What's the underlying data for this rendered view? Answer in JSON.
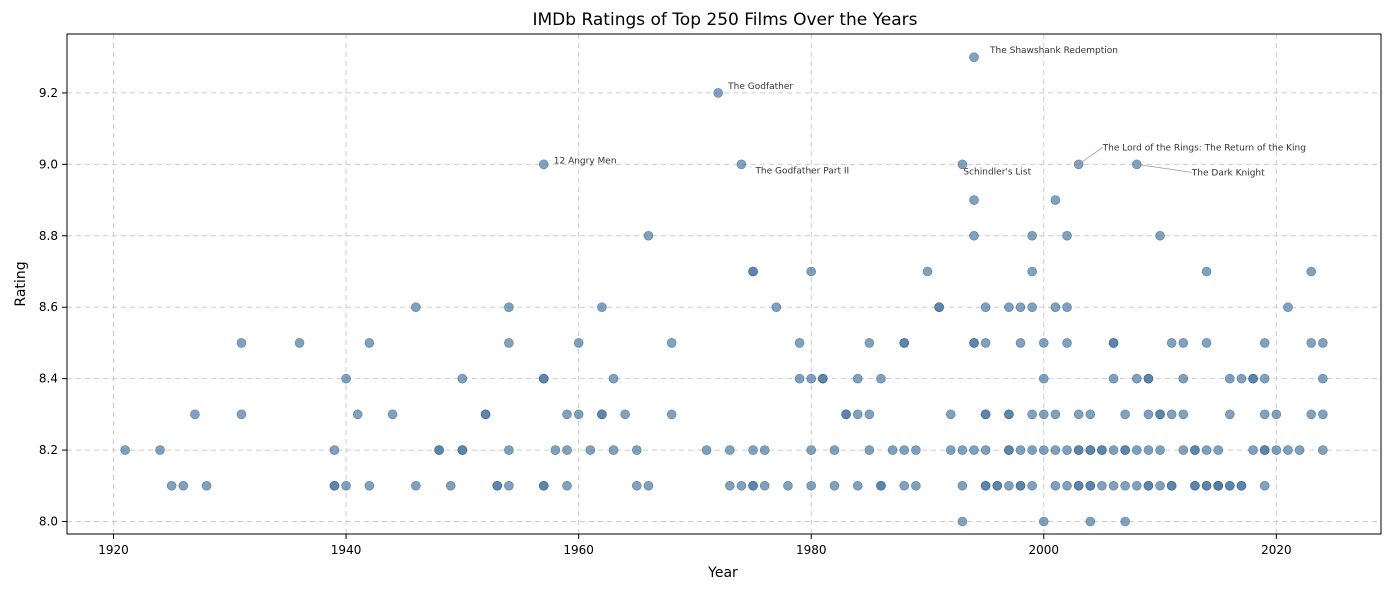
{
  "chart_data": {
    "type": "scatter",
    "title": "IMDb Ratings of Top 250 Films Over the Years",
    "xlabel": "Year",
    "ylabel": "Rating",
    "xlim": [
      1916,
      2029
    ],
    "ylim": [
      7.965,
      9.365
    ],
    "xticks": [
      1920,
      1940,
      1960,
      1980,
      2000,
      2020
    ],
    "yticks": [
      8.0,
      8.2,
      8.4,
      8.6,
      8.8,
      9.0,
      9.2
    ],
    "grid": true,
    "point_color": "#4a7ba7",
    "points": [
      [
        1921,
        8.2
      ],
      [
        1924,
        8.2
      ],
      [
        1925,
        8.1
      ],
      [
        1926,
        8.1
      ],
      [
        1927,
        8.3
      ],
      [
        1928,
        8.1
      ],
      [
        1931,
        8.5
      ],
      [
        1931,
        8.3
      ],
      [
        1936,
        8.5
      ],
      [
        1939,
        8.2
      ],
      [
        1939,
        8.1
      ],
      [
        1939,
        8.1
      ],
      [
        1940,
        8.4
      ],
      [
        1940,
        8.1
      ],
      [
        1941,
        8.3
      ],
      [
        1942,
        8.5
      ],
      [
        1942,
        8.1
      ],
      [
        1944,
        8.3
      ],
      [
        1946,
        8.6
      ],
      [
        1946,
        8.1
      ],
      [
        1948,
        8.2
      ],
      [
        1948,
        8.2
      ],
      [
        1949,
        8.1
      ],
      [
        1950,
        8.4
      ],
      [
        1950,
        8.2
      ],
      [
        1950,
        8.2
      ],
      [
        1952,
        8.3
      ],
      [
        1952,
        8.3
      ],
      [
        1953,
        8.1
      ],
      [
        1953,
        8.1
      ],
      [
        1954,
        8.6
      ],
      [
        1954,
        8.5
      ],
      [
        1954,
        8.2
      ],
      [
        1954,
        8.1
      ],
      [
        1957,
        9.0
      ],
      [
        1957,
        8.4
      ],
      [
        1957,
        8.4
      ],
      [
        1957,
        8.1
      ],
      [
        1957,
        8.1
      ],
      [
        1958,
        8.2
      ],
      [
        1959,
        8.3
      ],
      [
        1959,
        8.2
      ],
      [
        1959,
        8.1
      ],
      [
        1960,
        8.5
      ],
      [
        1960,
        8.3
      ],
      [
        1961,
        8.2
      ],
      [
        1962,
        8.6
      ],
      [
        1962,
        8.3
      ],
      [
        1962,
        8.3
      ],
      [
        1963,
        8.4
      ],
      [
        1963,
        8.2
      ],
      [
        1964,
        8.3
      ],
      [
        1965,
        8.2
      ],
      [
        1965,
        8.1
      ],
      [
        1966,
        8.8
      ],
      [
        1966,
        8.1
      ],
      [
        1968,
        8.5
      ],
      [
        1968,
        8.3
      ],
      [
        1971,
        8.2
      ],
      [
        1972,
        9.2
      ],
      [
        1973,
        8.2
      ],
      [
        1973,
        8.1
      ],
      [
        1974,
        9.0
      ],
      [
        1974,
        8.1
      ],
      [
        1975,
        8.7
      ],
      [
        1975,
        8.7
      ],
      [
        1975,
        8.2
      ],
      [
        1975,
        8.1
      ],
      [
        1975,
        8.1
      ],
      [
        1976,
        8.2
      ],
      [
        1976,
        8.1
      ],
      [
        1977,
        8.6
      ],
      [
        1978,
        8.1
      ],
      [
        1979,
        8.5
      ],
      [
        1979,
        8.4
      ],
      [
        1980,
        8.7
      ],
      [
        1980,
        8.4
      ],
      [
        1980,
        8.2
      ],
      [
        1980,
        8.1
      ],
      [
        1981,
        8.4
      ],
      [
        1981,
        8.4
      ],
      [
        1982,
        8.2
      ],
      [
        1982,
        8.1
      ],
      [
        1983,
        8.3
      ],
      [
        1983,
        8.3
      ],
      [
        1984,
        8.4
      ],
      [
        1984,
        8.3
      ],
      [
        1984,
        8.1
      ],
      [
        1985,
        8.5
      ],
      [
        1985,
        8.3
      ],
      [
        1985,
        8.2
      ],
      [
        1986,
        8.4
      ],
      [
        1986,
        8.1
      ],
      [
        1986,
        8.1
      ],
      [
        1987,
        8.2
      ],
      [
        1988,
        8.5
      ],
      [
        1988,
        8.5
      ],
      [
        1988,
        8.2
      ],
      [
        1988,
        8.1
      ],
      [
        1989,
        8.2
      ],
      [
        1989,
        8.1
      ],
      [
        1990,
        8.7
      ],
      [
        1991,
        8.6
      ],
      [
        1991,
        8.6
      ],
      [
        1992,
        8.3
      ],
      [
        1992,
        8.2
      ],
      [
        1993,
        9.0
      ],
      [
        1993,
        8.2
      ],
      [
        1993,
        8.1
      ],
      [
        1993,
        8.0
      ],
      [
        1994,
        9.3
      ],
      [
        1994,
        8.9
      ],
      [
        1994,
        8.8
      ],
      [
        1994,
        8.5
      ],
      [
        1994,
        8.5
      ],
      [
        1994,
        8.2
      ],
      [
        1995,
        8.6
      ],
      [
        1995,
        8.5
      ],
      [
        1995,
        8.3
      ],
      [
        1995,
        8.3
      ],
      [
        1995,
        8.2
      ],
      [
        1995,
        8.1
      ],
      [
        1995,
        8.1
      ],
      [
        1996,
        8.1
      ],
      [
        1996,
        8.1
      ],
      [
        1997,
        8.6
      ],
      [
        1997,
        8.3
      ],
      [
        1997,
        8.3
      ],
      [
        1997,
        8.2
      ],
      [
        1997,
        8.2
      ],
      [
        1997,
        8.1
      ],
      [
        1998,
        8.6
      ],
      [
        1998,
        8.5
      ],
      [
        1998,
        8.2
      ],
      [
        1998,
        8.1
      ],
      [
        1998,
        8.1
      ],
      [
        1999,
        8.8
      ],
      [
        1999,
        8.7
      ],
      [
        1999,
        8.6
      ],
      [
        1999,
        8.3
      ],
      [
        1999,
        8.2
      ],
      [
        1999,
        8.1
      ],
      [
        2000,
        8.5
      ],
      [
        2000,
        8.4
      ],
      [
        2000,
        8.3
      ],
      [
        2000,
        8.2
      ],
      [
        2000,
        8.0
      ],
      [
        2001,
        8.9
      ],
      [
        2001,
        8.6
      ],
      [
        2001,
        8.3
      ],
      [
        2001,
        8.2
      ],
      [
        2001,
        8.1
      ],
      [
        2002,
        8.8
      ],
      [
        2002,
        8.6
      ],
      [
        2002,
        8.5
      ],
      [
        2002,
        8.2
      ],
      [
        2002,
        8.1
      ],
      [
        2003,
        9.0
      ],
      [
        2003,
        8.3
      ],
      [
        2003,
        8.2
      ],
      [
        2003,
        8.2
      ],
      [
        2003,
        8.1
      ],
      [
        2003,
        8.1
      ],
      [
        2004,
        8.3
      ],
      [
        2004,
        8.2
      ],
      [
        2004,
        8.2
      ],
      [
        2004,
        8.1
      ],
      [
        2004,
        8.1
      ],
      [
        2004,
        8.0
      ],
      [
        2005,
        8.2
      ],
      [
        2005,
        8.2
      ],
      [
        2005,
        8.1
      ],
      [
        2006,
        8.5
      ],
      [
        2006,
        8.5
      ],
      [
        2006,
        8.4
      ],
      [
        2006,
        8.2
      ],
      [
        2006,
        8.1
      ],
      [
        2007,
        8.3
      ],
      [
        2007,
        8.2
      ],
      [
        2007,
        8.2
      ],
      [
        2007,
        8.1
      ],
      [
        2007,
        8.0
      ],
      [
        2008,
        9.0
      ],
      [
        2008,
        8.4
      ],
      [
        2008,
        8.2
      ],
      [
        2008,
        8.1
      ],
      [
        2009,
        8.4
      ],
      [
        2009,
        8.4
      ],
      [
        2009,
        8.3
      ],
      [
        2009,
        8.2
      ],
      [
        2009,
        8.1
      ],
      [
        2009,
        8.1
      ],
      [
        2010,
        8.8
      ],
      [
        2010,
        8.3
      ],
      [
        2010,
        8.3
      ],
      [
        2010,
        8.2
      ],
      [
        2010,
        8.1
      ],
      [
        2011,
        8.5
      ],
      [
        2011,
        8.3
      ],
      [
        2011,
        8.1
      ],
      [
        2011,
        8.1
      ],
      [
        2012,
        8.5
      ],
      [
        2012,
        8.4
      ],
      [
        2012,
        8.3
      ],
      [
        2012,
        8.2
      ],
      [
        2013,
        8.2
      ],
      [
        2013,
        8.2
      ],
      [
        2013,
        8.1
      ],
      [
        2013,
        8.1
      ],
      [
        2014,
        8.7
      ],
      [
        2014,
        8.5
      ],
      [
        2014,
        8.2
      ],
      [
        2014,
        8.1
      ],
      [
        2014,
        8.1
      ],
      [
        2015,
        8.2
      ],
      [
        2015,
        8.1
      ],
      [
        2015,
        8.1
      ],
      [
        2015,
        8.1
      ],
      [
        2016,
        8.4
      ],
      [
        2016,
        8.3
      ],
      [
        2016,
        8.1
      ],
      [
        2016,
        8.1
      ],
      [
        2017,
        8.4
      ],
      [
        2017,
        8.1
      ],
      [
        2017,
        8.1
      ],
      [
        2018,
        8.4
      ],
      [
        2018,
        8.4
      ],
      [
        2018,
        8.2
      ],
      [
        2019,
        8.5
      ],
      [
        2019,
        8.4
      ],
      [
        2019,
        8.3
      ],
      [
        2019,
        8.2
      ],
      [
        2019,
        8.2
      ],
      [
        2019,
        8.1
      ],
      [
        2020,
        8.3
      ],
      [
        2020,
        8.2
      ],
      [
        2021,
        8.6
      ],
      [
        2021,
        8.2
      ],
      [
        2022,
        8.2
      ],
      [
        2023,
        8.7
      ],
      [
        2023,
        8.5
      ],
      [
        2023,
        8.3
      ],
      [
        2024,
        8.5
      ],
      [
        2024,
        8.4
      ],
      [
        2024,
        8.3
      ],
      [
        2024,
        8.2
      ]
    ],
    "annotations": [
      {
        "text": "The Shawshank Redemption",
        "x": 1994,
        "y": 9.3
      },
      {
        "text": "The Godfather",
        "x": 1972,
        "y": 9.2
      },
      {
        "text": "12 Angry Men",
        "x": 1957,
        "y": 9.0
      },
      {
        "text": "The Godfather Part II",
        "x": 1974,
        "y": 9.0
      },
      {
        "text": "Schindler's List",
        "x": 1993,
        "y": 9.0
      },
      {
        "text": "The Lord of the Rings: The Return of the King",
        "x": 2003,
        "y": 9.0
      },
      {
        "text": "The Dark Knight",
        "x": 2008,
        "y": 9.0
      }
    ]
  }
}
